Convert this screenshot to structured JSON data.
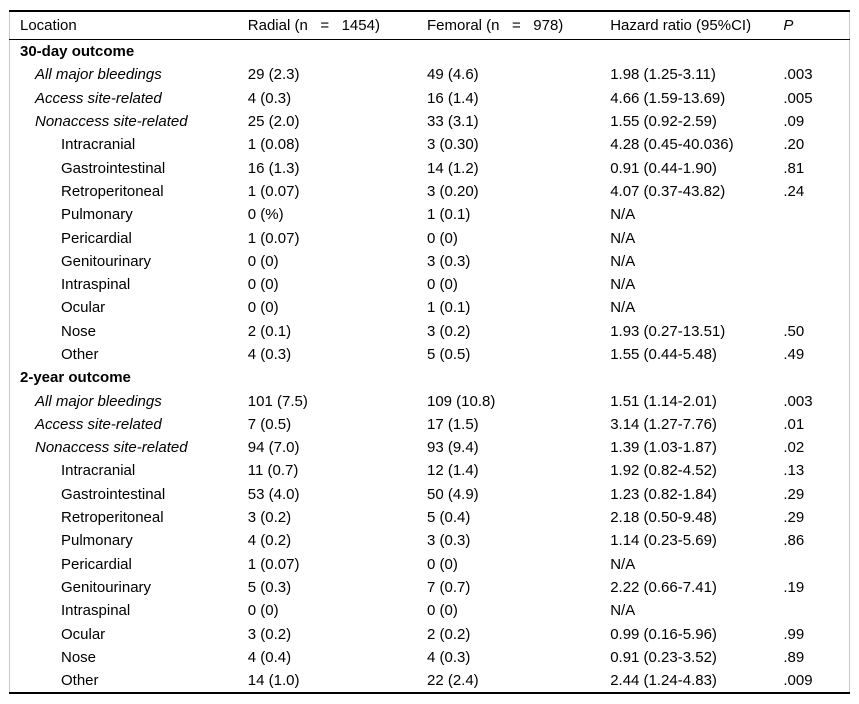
{
  "table": {
    "columns": [
      "Location",
      "Radial (n   =   1454)",
      "Femoral (n   =   978)",
      "Hazard ratio (95%CI)",
      "P"
    ],
    "rows": [
      {
        "label": "30-day outcome",
        "level": 0,
        "bold": true,
        "italic": false,
        "radial": "",
        "femoral": "",
        "hazard_ratio": "",
        "p": ""
      },
      {
        "label": "All major bleedings",
        "level": 1,
        "bold": false,
        "italic": true,
        "radial": "29 (2.3)",
        "femoral": "49 (4.6)",
        "hazard_ratio": "1.98 (1.25-3.11)",
        "p": ".003"
      },
      {
        "label": "Access site-related",
        "level": 1,
        "bold": false,
        "italic": true,
        "radial": "4 (0.3)",
        "femoral": "16 (1.4)",
        "hazard_ratio": "4.66 (1.59-13.69)",
        "p": ".005"
      },
      {
        "label": "Nonaccess site-related",
        "level": 1,
        "bold": false,
        "italic": true,
        "radial": "25 (2.0)",
        "femoral": "33 (3.1)",
        "hazard_ratio": "1.55 (0.92-2.59)",
        "p": ".09"
      },
      {
        "label": "Intracranial",
        "level": 2,
        "bold": false,
        "italic": false,
        "radial": "1 (0.08)",
        "femoral": "3 (0.30)",
        "hazard_ratio": "4.28 (0.45-40.036)",
        "p": ".20"
      },
      {
        "label": "Gastrointestinal",
        "level": 2,
        "bold": false,
        "italic": false,
        "radial": "16 (1.3)",
        "femoral": "14 (1.2)",
        "hazard_ratio": "0.91 (0.44-1.90)",
        "p": ".81"
      },
      {
        "label": "Retroperitoneal",
        "level": 2,
        "bold": false,
        "italic": false,
        "radial": "1 (0.07)",
        "femoral": "3 (0.20)",
        "hazard_ratio": "4.07 (0.37-43.82)",
        "p": ".24"
      },
      {
        "label": "Pulmonary",
        "level": 2,
        "bold": false,
        "italic": false,
        "radial": "0 (%)",
        "femoral": "1 (0.1)",
        "hazard_ratio": "N/A",
        "p": ""
      },
      {
        "label": "Pericardial",
        "level": 2,
        "bold": false,
        "italic": false,
        "radial": "1 (0.07)",
        "femoral": "0 (0)",
        "hazard_ratio": "N/A",
        "p": ""
      },
      {
        "label": "Genitourinary",
        "level": 2,
        "bold": false,
        "italic": false,
        "radial": "0 (0)",
        "femoral": "3 (0.3)",
        "hazard_ratio": "N/A",
        "p": ""
      },
      {
        "label": "Intraspinal",
        "level": 2,
        "bold": false,
        "italic": false,
        "radial": "0 (0)",
        "femoral": "0 (0)",
        "hazard_ratio": "N/A",
        "p": ""
      },
      {
        "label": "Ocular",
        "level": 2,
        "bold": false,
        "italic": false,
        "radial": "0 (0)",
        "femoral": "1 (0.1)",
        "hazard_ratio": "N/A",
        "p": ""
      },
      {
        "label": "Nose",
        "level": 2,
        "bold": false,
        "italic": false,
        "radial": "2 (0.1)",
        "femoral": "3 (0.2)",
        "hazard_ratio": "1.93 (0.27-13.51)",
        "p": ".50"
      },
      {
        "label": "Other",
        "level": 2,
        "bold": false,
        "italic": false,
        "radial": "4 (0.3)",
        "femoral": "5 (0.5)",
        "hazard_ratio": "1.55 (0.44-5.48)",
        "p": ".49"
      },
      {
        "label": "2-year outcome",
        "level": 0,
        "bold": true,
        "italic": false,
        "radial": "",
        "femoral": "",
        "hazard_ratio": "",
        "p": ""
      },
      {
        "label": "All major bleedings",
        "level": 1,
        "bold": false,
        "italic": true,
        "radial": "101 (7.5)",
        "femoral": "109 (10.8)",
        "hazard_ratio": "1.51 (1.14-2.01)",
        "p": ".003"
      },
      {
        "label": "Access site-related",
        "level": 1,
        "bold": false,
        "italic": true,
        "radial": "7 (0.5)",
        "femoral": "17 (1.5)",
        "hazard_ratio": "3.14 (1.27-7.76)",
        "p": ".01"
      },
      {
        "label": "Nonaccess site-related",
        "level": 1,
        "bold": false,
        "italic": true,
        "radial": "94 (7.0)",
        "femoral": "93 (9.4)",
        "hazard_ratio": "1.39 (1.03-1.87)",
        "p": ".02"
      },
      {
        "label": "Intracranial",
        "level": 2,
        "bold": false,
        "italic": false,
        "radial": "11 (0.7)",
        "femoral": "12 (1.4)",
        "hazard_ratio": "1.92 (0.82-4.52)",
        "p": ".13"
      },
      {
        "label": "Gastrointestinal",
        "level": 2,
        "bold": false,
        "italic": false,
        "radial": "53 (4.0)",
        "femoral": "50 (4.9)",
        "hazard_ratio": "1.23 (0.82-1.84)",
        "p": ".29"
      },
      {
        "label": "Retroperitoneal",
        "level": 2,
        "bold": false,
        "italic": false,
        "radial": "3 (0.2)",
        "femoral": "5 (0.4)",
        "hazard_ratio": "2.18 (0.50-9.48)",
        "p": ".29"
      },
      {
        "label": "Pulmonary",
        "level": 2,
        "bold": false,
        "italic": false,
        "radial": "4 (0.2)",
        "femoral": "3 (0.3)",
        "hazard_ratio": "1.14 (0.23-5.69)",
        "p": ".86"
      },
      {
        "label": "Pericardial",
        "level": 2,
        "bold": false,
        "italic": false,
        "radial": "1 (0.07)",
        "femoral": "0 (0)",
        "hazard_ratio": "N/A",
        "p": ""
      },
      {
        "label": "Genitourinary",
        "level": 2,
        "bold": false,
        "italic": false,
        "radial": "5 (0.3)",
        "femoral": "7 (0.7)",
        "hazard_ratio": "2.22 (0.66-7.41)",
        "p": ".19"
      },
      {
        "label": "Intraspinal",
        "level": 2,
        "bold": false,
        "italic": false,
        "radial": "0 (0)",
        "femoral": "0 (0)",
        "hazard_ratio": "N/A",
        "p": ""
      },
      {
        "label": "Ocular",
        "level": 2,
        "bold": false,
        "italic": false,
        "radial": "3 (0.2)",
        "femoral": "2 (0.2)",
        "hazard_ratio": "0.99 (0.16-5.96)",
        "p": ".99"
      },
      {
        "label": "Nose",
        "level": 2,
        "bold": false,
        "italic": false,
        "radial": "4 (0.4)",
        "femoral": "4 (0.3)",
        "hazard_ratio": "0.91 (0.23-3.52)",
        "p": ".89"
      },
      {
        "label": "Other",
        "level": 2,
        "bold": false,
        "italic": false,
        "radial": "14 (1.0)",
        "femoral": "22 (2.4)",
        "hazard_ratio": "2.44 (1.24-4.83)",
        "p": ".009"
      }
    ]
  },
  "colors": {
    "text": "#000000",
    "rule": "#000000",
    "outer_border": "#c9c9c9",
    "background": "#ffffff"
  }
}
